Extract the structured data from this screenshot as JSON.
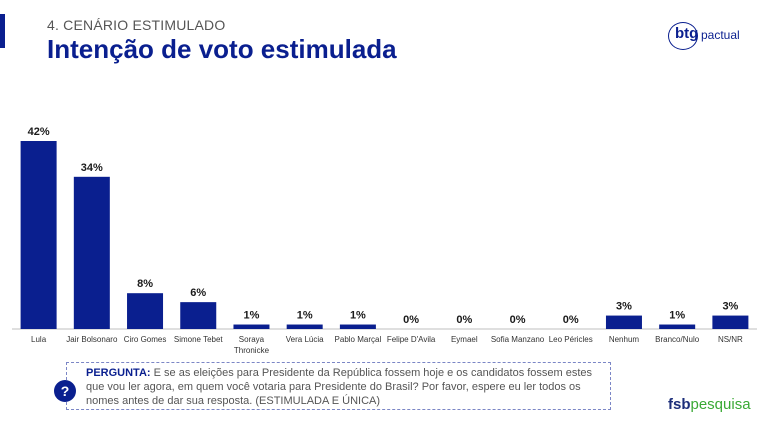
{
  "header": {
    "section": "4. CENÁRIO ESTIMULADO",
    "title": "Intenção de voto estimulada"
  },
  "brand": {
    "btg_bold": "btg",
    "btg_light": "pactual",
    "fsb_bold": "fsb",
    "fsb_light": "pesquisa"
  },
  "question": {
    "label": "PERGUNTA:",
    "text": " E se as eleições para Presidente da República fossem hoje e os candidatos fossem estes que vou ler agora, em quem você votaria para Presidente do Brasil? Por favor, espere eu ler todos os nomes antes de dar sua resposta. (ESTIMULADA E ÚNICA)",
    "icon": "?"
  },
  "colors": {
    "bar": "#0a1f8f",
    "title": "#0a1f8f",
    "axis": "#bfbfbf"
  },
  "chart_data": {
    "type": "bar",
    "categories": [
      [
        "Lula"
      ],
      [
        "Jair Bolsonaro"
      ],
      [
        "Ciro Gomes"
      ],
      [
        "Simone Tebet"
      ],
      [
        "Soraya",
        "Thronicke"
      ],
      [
        "Vera Lúcia"
      ],
      [
        "Pablo Marçal"
      ],
      [
        "Felipe D'Avila"
      ],
      [
        "Eymael"
      ],
      [
        "Sofia Manzano"
      ],
      [
        "Leo Péricles"
      ],
      [
        "Nenhum"
      ],
      [
        "Branco/Nulo"
      ],
      [
        "NS/NR"
      ]
    ],
    "values": [
      42,
      34,
      8,
      6,
      1,
      1,
      1,
      0,
      0,
      0,
      0,
      3,
      1,
      3
    ],
    "value_suffix": "%",
    "ylim": [
      0,
      42
    ],
    "grid": false,
    "legend": "none"
  }
}
